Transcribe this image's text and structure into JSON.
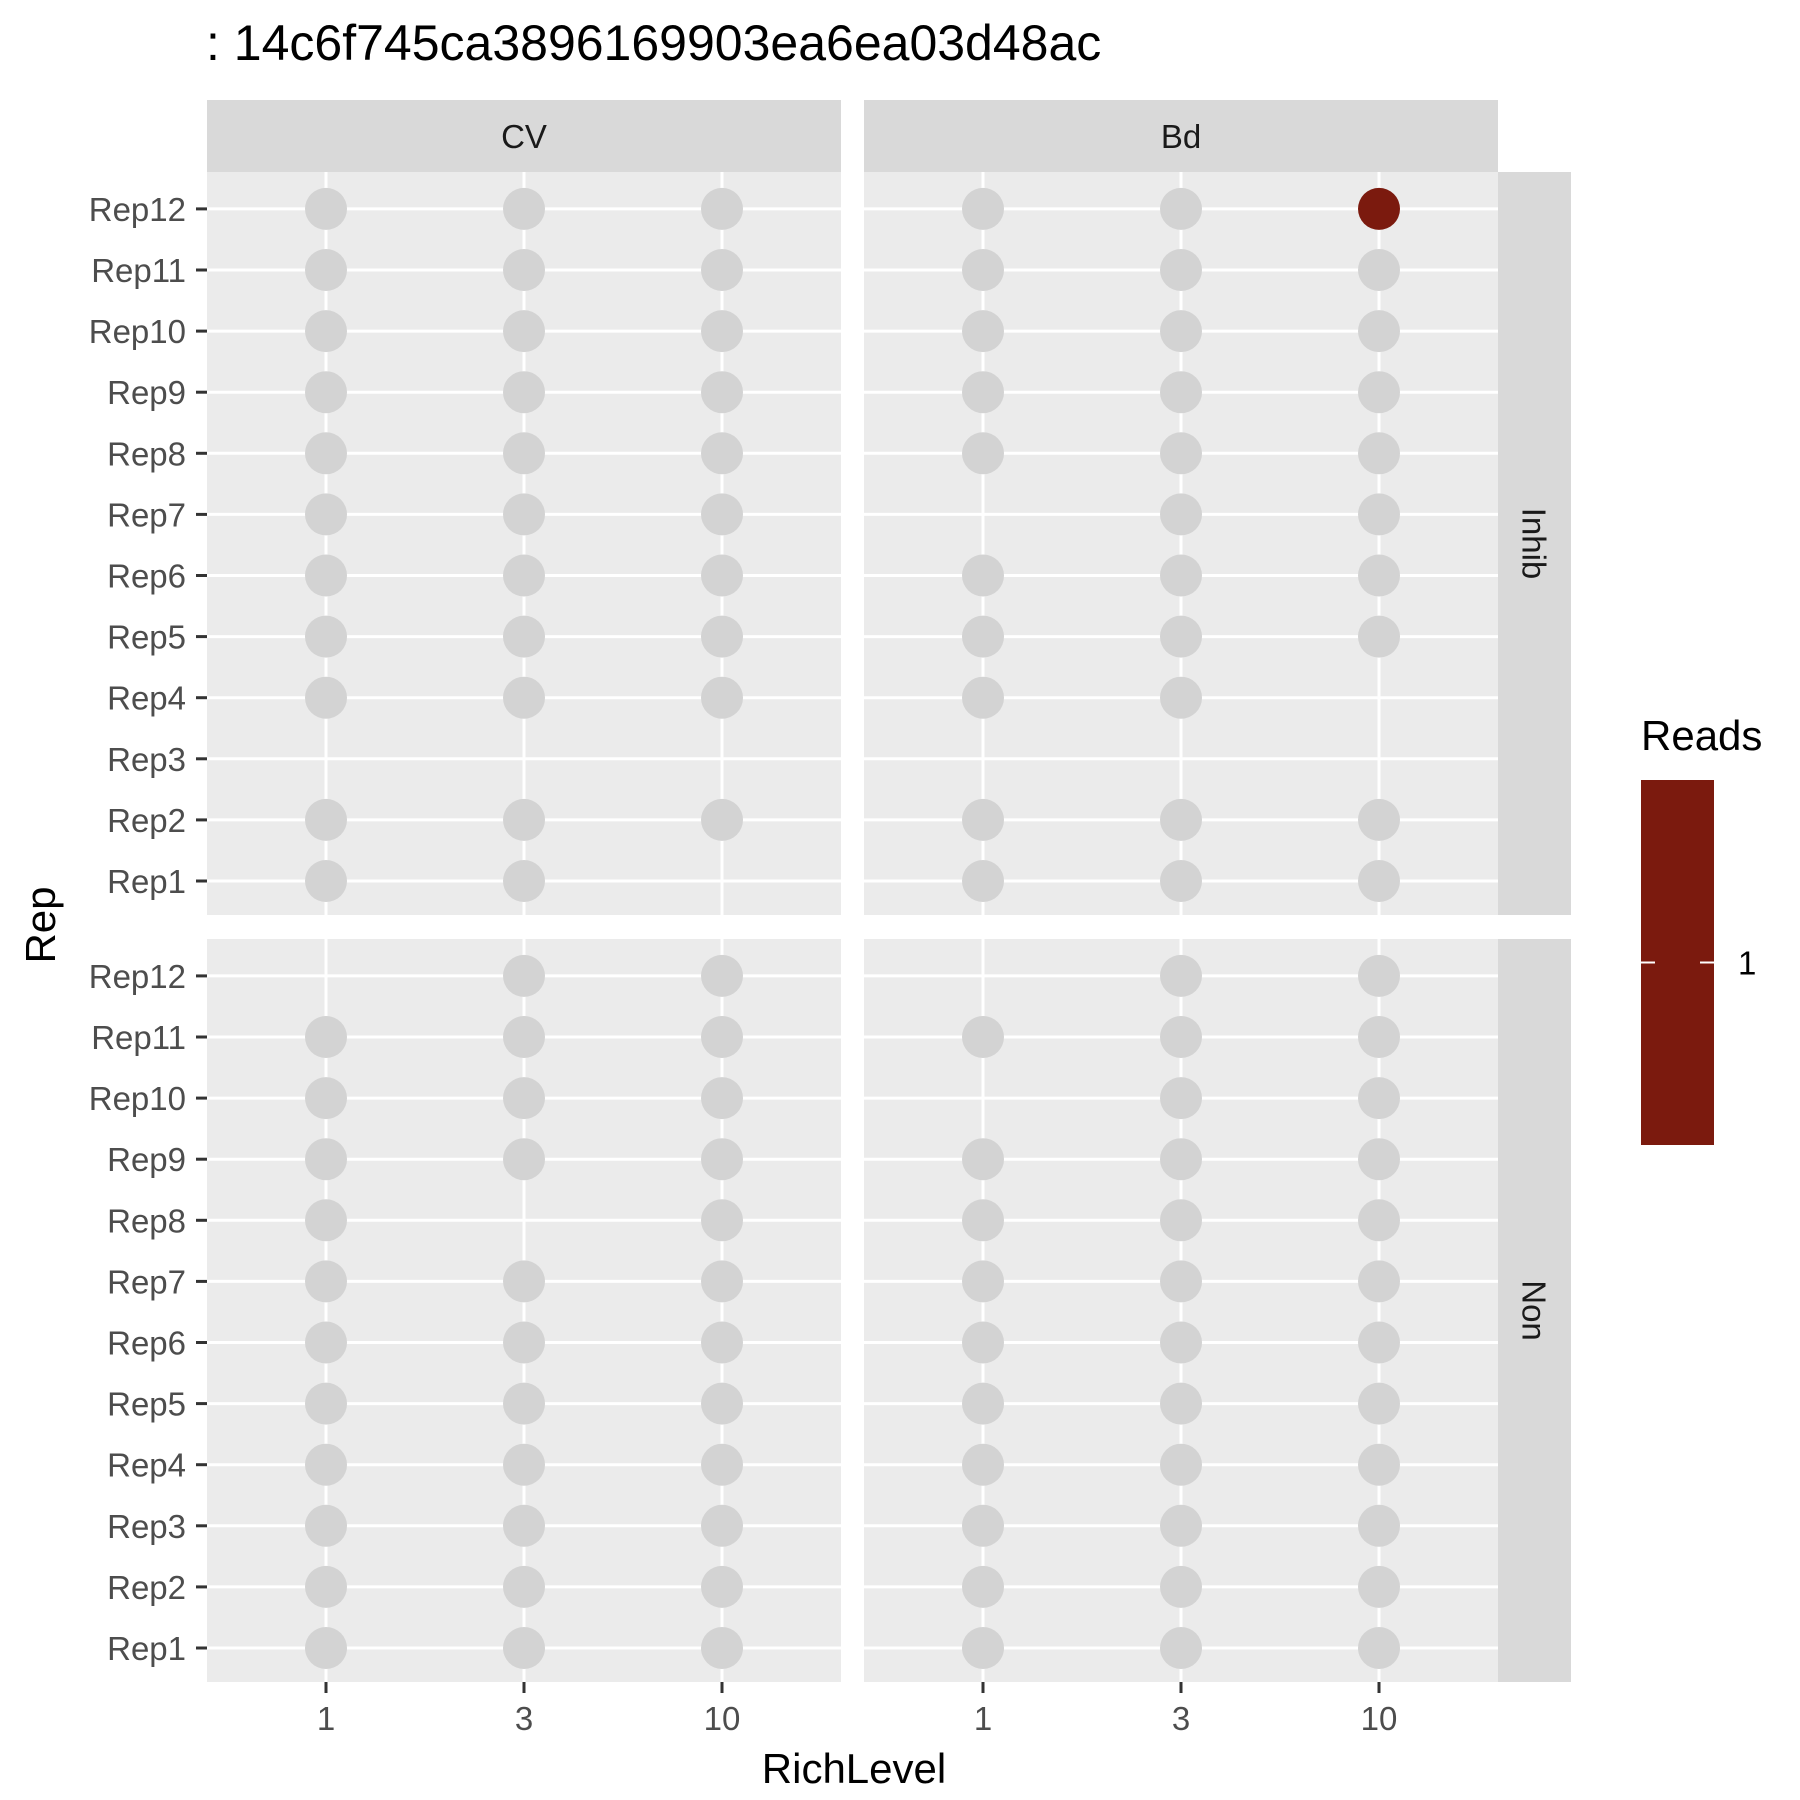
{
  "chart_data": {
    "type": "scatter",
    "title": ": 14c6f745ca3896169903ea6ea03d48ac",
    "xlabel": "RichLevel",
    "ylabel": "Rep",
    "x_categories": [
      "1",
      "3",
      "10"
    ],
    "y_categories": [
      "Rep1",
      "Rep2",
      "Rep3",
      "Rep4",
      "Rep5",
      "Rep6",
      "Rep7",
      "Rep8",
      "Rep9",
      "Rep10",
      "Rep11",
      "Rep12"
    ],
    "column_facets": [
      "CV",
      "Bd"
    ],
    "row_facets": [
      "Inhib",
      "Non"
    ],
    "legend": {
      "title": "Reads",
      "tick_labels": [
        "1"
      ],
      "position": "right"
    },
    "colors": {
      "zero_reads": "#d3d3d3",
      "reads_fill": "#7b1a0e",
      "panel_background": "#ebebeb",
      "strip_background": "#d9d9d9",
      "grid": "#ffffff"
    },
    "panels": [
      {
        "column_facet": "CV",
        "row_facet": "Inhib",
        "present": [
          [
            1,
            1
          ],
          [
            3,
            1
          ],
          [
            1,
            2
          ],
          [
            3,
            2
          ],
          [
            10,
            2
          ],
          [
            1,
            4
          ],
          [
            3,
            4
          ],
          [
            10,
            4
          ],
          [
            1,
            5
          ],
          [
            3,
            5
          ],
          [
            10,
            5
          ],
          [
            1,
            6
          ],
          [
            3,
            6
          ],
          [
            10,
            6
          ],
          [
            1,
            7
          ],
          [
            3,
            7
          ],
          [
            10,
            7
          ],
          [
            1,
            8
          ],
          [
            3,
            8
          ],
          [
            10,
            8
          ],
          [
            1,
            9
          ],
          [
            3,
            9
          ],
          [
            10,
            9
          ],
          [
            1,
            10
          ],
          [
            3,
            10
          ],
          [
            10,
            10
          ],
          [
            1,
            11
          ],
          [
            3,
            11
          ],
          [
            10,
            11
          ],
          [
            1,
            12
          ],
          [
            3,
            12
          ],
          [
            10,
            12
          ]
        ],
        "reads": []
      },
      {
        "column_facet": "Bd",
        "row_facet": "Inhib",
        "present": [
          [
            1,
            1
          ],
          [
            3,
            1
          ],
          [
            10,
            1
          ],
          [
            1,
            2
          ],
          [
            3,
            2
          ],
          [
            10,
            2
          ],
          [
            1,
            4
          ],
          [
            3,
            4
          ],
          [
            1,
            5
          ],
          [
            3,
            5
          ],
          [
            10,
            5
          ],
          [
            1,
            6
          ],
          [
            3,
            6
          ],
          [
            10,
            6
          ],
          [
            3,
            7
          ],
          [
            10,
            7
          ],
          [
            1,
            8
          ],
          [
            3,
            8
          ],
          [
            10,
            8
          ],
          [
            1,
            9
          ],
          [
            3,
            9
          ],
          [
            10,
            9
          ],
          [
            1,
            10
          ],
          [
            3,
            10
          ],
          [
            10,
            10
          ],
          [
            1,
            11
          ],
          [
            3,
            11
          ],
          [
            10,
            11
          ],
          [
            1,
            12
          ],
          [
            3,
            12
          ],
          [
            10,
            12
          ]
        ],
        "reads": [
          {
            "x": "10",
            "y": "Rep12",
            "value": 1
          }
        ]
      },
      {
        "column_facet": "CV",
        "row_facet": "Non",
        "present": [
          [
            1,
            1
          ],
          [
            3,
            1
          ],
          [
            10,
            1
          ],
          [
            1,
            2
          ],
          [
            3,
            2
          ],
          [
            10,
            2
          ],
          [
            1,
            3
          ],
          [
            3,
            3
          ],
          [
            10,
            3
          ],
          [
            1,
            4
          ],
          [
            3,
            4
          ],
          [
            10,
            4
          ],
          [
            1,
            5
          ],
          [
            3,
            5
          ],
          [
            10,
            5
          ],
          [
            1,
            6
          ],
          [
            3,
            6
          ],
          [
            10,
            6
          ],
          [
            1,
            7
          ],
          [
            3,
            7
          ],
          [
            10,
            7
          ],
          [
            1,
            8
          ],
          [
            10,
            8
          ],
          [
            1,
            9
          ],
          [
            3,
            9
          ],
          [
            10,
            9
          ],
          [
            1,
            10
          ],
          [
            3,
            10
          ],
          [
            10,
            10
          ],
          [
            1,
            11
          ],
          [
            3,
            11
          ],
          [
            10,
            11
          ],
          [
            3,
            12
          ],
          [
            10,
            12
          ]
        ],
        "reads": []
      },
      {
        "column_facet": "Bd",
        "row_facet": "Non",
        "present": [
          [
            1,
            1
          ],
          [
            3,
            1
          ],
          [
            10,
            1
          ],
          [
            1,
            2
          ],
          [
            3,
            2
          ],
          [
            10,
            2
          ],
          [
            1,
            3
          ],
          [
            3,
            3
          ],
          [
            10,
            3
          ],
          [
            1,
            4
          ],
          [
            3,
            4
          ],
          [
            10,
            4
          ],
          [
            1,
            5
          ],
          [
            3,
            5
          ],
          [
            10,
            5
          ],
          [
            1,
            6
          ],
          [
            3,
            6
          ],
          [
            10,
            6
          ],
          [
            1,
            7
          ],
          [
            3,
            7
          ],
          [
            10,
            7
          ],
          [
            1,
            8
          ],
          [
            3,
            8
          ],
          [
            10,
            8
          ],
          [
            1,
            9
          ],
          [
            3,
            9
          ],
          [
            10,
            9
          ],
          [
            3,
            10
          ],
          [
            10,
            10
          ],
          [
            1,
            11
          ],
          [
            3,
            11
          ],
          [
            10,
            11
          ],
          [
            3,
            12
          ],
          [
            10,
            12
          ]
        ],
        "reads": []
      }
    ]
  }
}
